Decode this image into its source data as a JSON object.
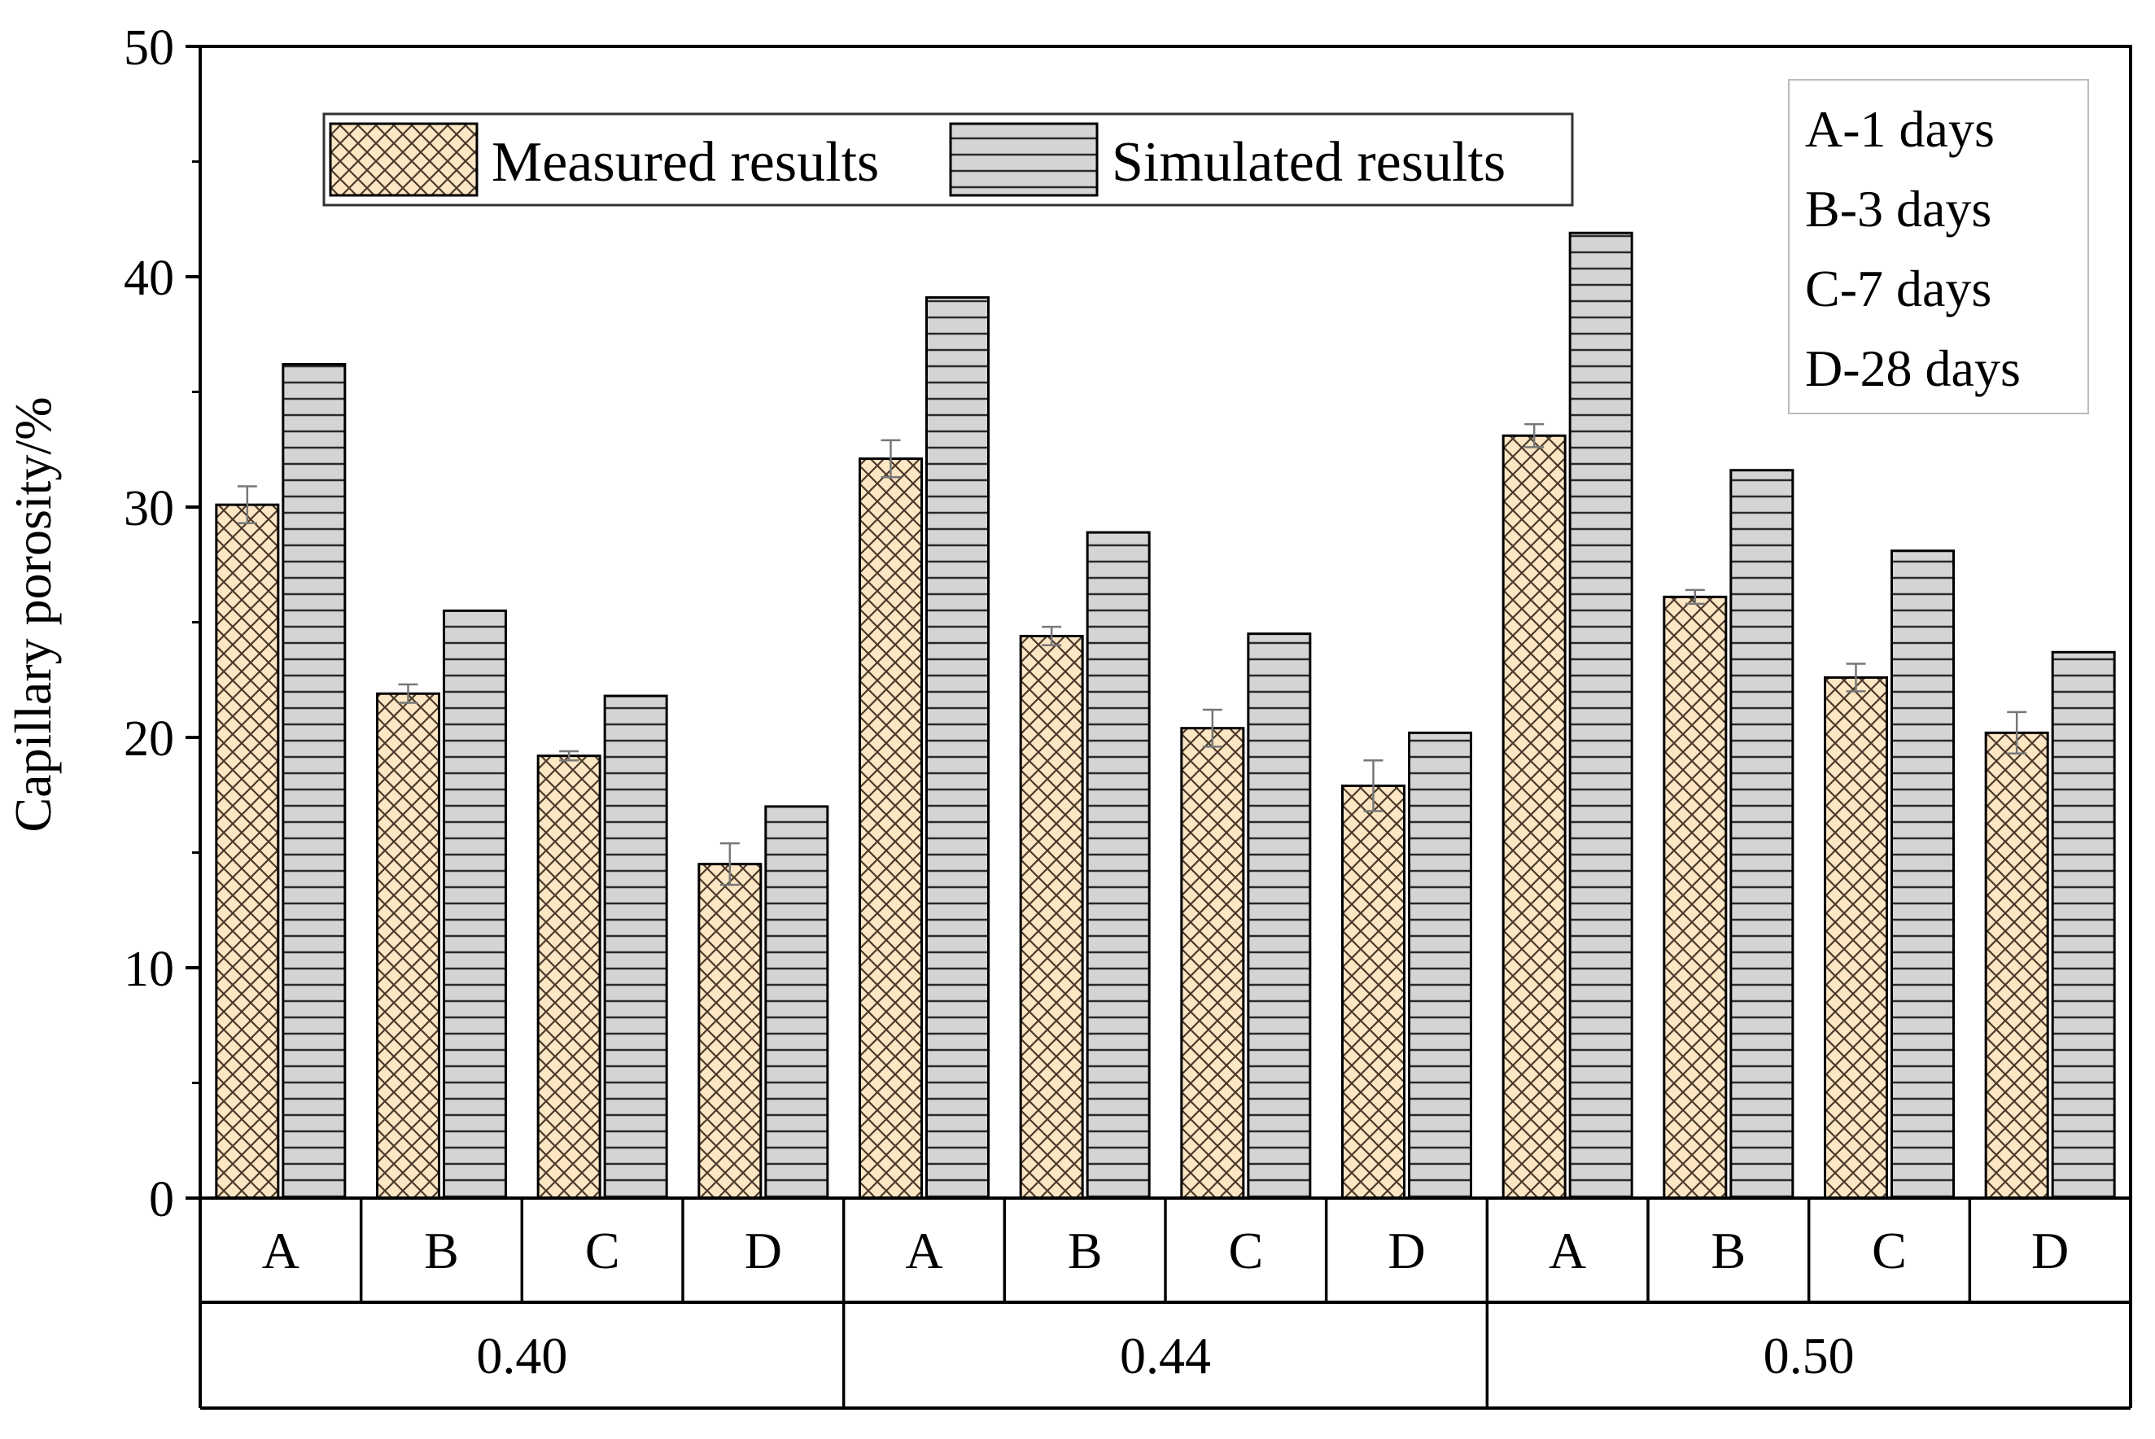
{
  "chart_data": {
    "type": "bar",
    "title": "",
    "xlabel": "",
    "ylabel": "Capillary porosity/%",
    "ylim": [
      0,
      50
    ],
    "yticks": [
      "0",
      "10",
      "20",
      "30",
      "40",
      "50"
    ],
    "groups": [
      {
        "label": "0.40",
        "categories": [
          "A",
          "B",
          "C",
          "D"
        ]
      },
      {
        "label": "0.44",
        "categories": [
          "A",
          "B",
          "C",
          "D"
        ]
      },
      {
        "label": "0.50",
        "categories": [
          "A",
          "B",
          "C",
          "D"
        ]
      }
    ],
    "series": [
      {
        "name": "Measured results",
        "pattern": "crosshatch",
        "color": "#FDE6C4",
        "values": [
          30.1,
          21.9,
          19.2,
          14.5,
          32.1,
          24.4,
          20.4,
          17.9,
          33.1,
          26.1,
          22.6,
          20.2
        ],
        "errors": [
          0.8,
          0.4,
          0.2,
          0.9,
          0.8,
          0.4,
          0.8,
          1.1,
          0.5,
          0.3,
          0.6,
          0.9
        ]
      },
      {
        "name": "Simulated results",
        "pattern": "horizontal",
        "color": "#D4D4D4",
        "values": [
          36.2,
          25.5,
          21.8,
          17.0,
          39.1,
          28.9,
          24.5,
          20.2,
          41.9,
          31.6,
          28.1,
          23.7
        ]
      }
    ],
    "legend": {
      "position": "top-left",
      "entries": [
        "Measured results",
        "Simulated results"
      ]
    },
    "annotation": {
      "position": "top-right",
      "lines": [
        "A-1 days",
        "B-3 days",
        "C-7 days",
        "D-28 days"
      ]
    }
  }
}
